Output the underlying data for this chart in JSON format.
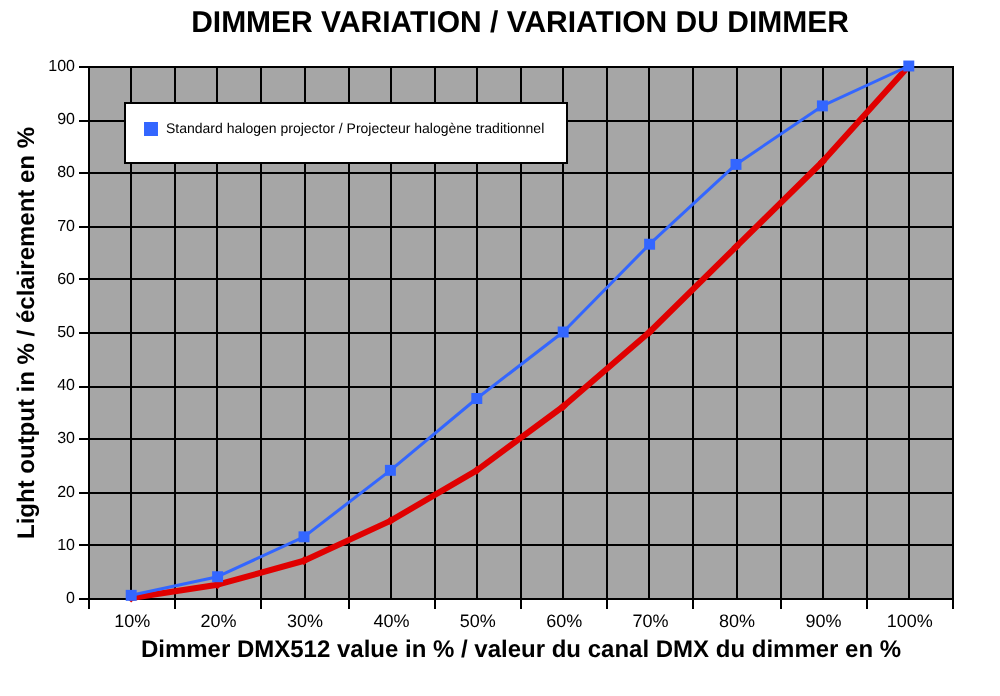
{
  "chart_data": {
    "type": "line",
    "title": "DIMMER VARIATION / VARIATION DU DIMMER",
    "xlabel": "Dimmer DMX512 value in % / valeur du canal DMX du dimmer en %",
    "ylabel": "Light output in % / éclairement en %",
    "categories": [
      "10%",
      "20%",
      "30%",
      "40%",
      "50%",
      "60%",
      "70%",
      "80%",
      "90%",
      "100%"
    ],
    "series": [
      {
        "color": "#e00000",
        "marker": "diamond",
        "values": [
          0,
          2.5,
          7,
          14.5,
          24,
          36,
          50,
          66,
          82,
          100
        ]
      },
      {
        "name": "Standard halogen projector / Projecteur halogène traditionnel",
        "color": "#3366ff",
        "marker": "square",
        "values": [
          0.5,
          4,
          11.5,
          24,
          37.5,
          50,
          66.5,
          81.5,
          92.5,
          100
        ]
      }
    ],
    "ylim": [
      0,
      100
    ],
    "yticks": [
      0,
      10,
      20,
      30,
      40,
      50,
      60,
      70,
      80,
      90,
      100
    ],
    "grid": true,
    "legend": "top left"
  }
}
